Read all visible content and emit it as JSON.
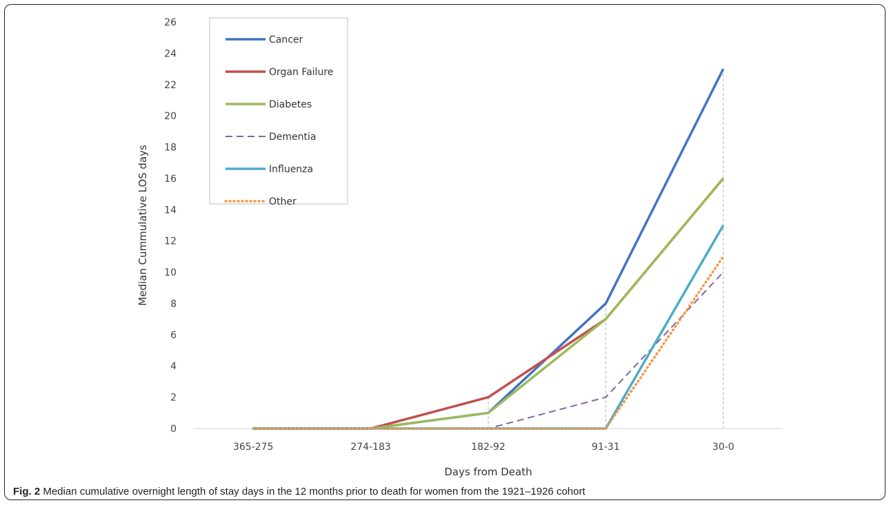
{
  "caption": {
    "label": "Fig. 2",
    "text": " Median cumulative overnight length of stay days in the 12 months prior to death for women from the 1921–1926 cohort"
  },
  "chart_data": {
    "type": "line",
    "xlabel": "Days from Death",
    "ylabel": "Median Cummulative LOS days",
    "categories": [
      "365-275",
      "274-183",
      "182-92",
      "91-31",
      "30-0"
    ],
    "ylim": [
      0,
      26
    ],
    "yticks": [
      0,
      2,
      4,
      6,
      8,
      10,
      12,
      14,
      16,
      18,
      20,
      22,
      24,
      26
    ],
    "grid": false,
    "legend_position": "top-left",
    "series": [
      {
        "name": "Cancer",
        "values": [
          0,
          0,
          1,
          8,
          23
        ],
        "color": "#4472c4",
        "style": "solid"
      },
      {
        "name": "Organ Failure",
        "values": [
          0,
          0,
          2,
          7,
          16
        ],
        "color": "#c0504d",
        "style": "solid"
      },
      {
        "name": "Diabetes",
        "values": [
          0,
          0,
          1,
          7,
          16
        ],
        "color": "#9bbb59",
        "style": "solid"
      },
      {
        "name": "Dementia",
        "values": [
          0,
          0,
          0,
          2,
          10
        ],
        "color": "#8064a2",
        "style": "dashed"
      },
      {
        "name": "Influenza",
        "values": [
          0,
          0,
          0,
          0,
          13
        ],
        "color": "#4bacc6",
        "style": "solid"
      },
      {
        "name": "Other",
        "values": [
          0,
          0,
          0,
          0,
          11
        ],
        "color": "#f79646",
        "style": "dotted"
      }
    ]
  }
}
